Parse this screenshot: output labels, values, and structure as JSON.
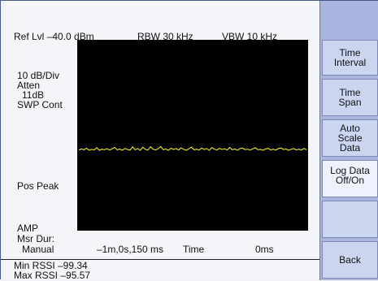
{
  "header": {
    "ref_level": "Ref Lvl –40.0 dBm",
    "rbw": "RBW 30 kHz",
    "vbw": "VBW 10 kHz"
  },
  "left_panel": {
    "scale": "10 dB/Div",
    "atten_label": "Atten",
    "atten_value": "11dB",
    "sweep_mode": "SWP Cont",
    "detector": "Pos Peak",
    "amp": "AMP",
    "msr_dur_label": "Msr Dur:",
    "msr_dur_value": "Manual"
  },
  "x_axis": {
    "start": "–1m,0s,150 ms",
    "label": "Time",
    "end": "0ms"
  },
  "readouts": {
    "min_rssi": "Min RSSI –99.34",
    "max_rssi": "Max RSSI –95.57"
  },
  "softkeys": [
    {
      "label": "",
      "style": "hdr"
    },
    {
      "label": "Time\nInterval",
      "style": "normal"
    },
    {
      "label": "Time\nSpan",
      "style": "normal"
    },
    {
      "label": "Auto\nScale\nData",
      "style": "normal"
    },
    {
      "label": "Log Data\nOff/On",
      "style": "selected"
    },
    {
      "label": "",
      "style": "normal"
    },
    {
      "label": "Back",
      "style": "normal"
    }
  ],
  "trace": {
    "color": "#ffff00",
    "level_dbm": -97.5,
    "points": [
      -97.8,
      -97.2,
      -97.6,
      -96.8,
      -97.9,
      -97.4,
      -97.7,
      -96.5,
      -97.9,
      -97.3,
      -97.6,
      -97.0,
      -97.8,
      -97.1,
      -96.4,
      -97.7,
      -97.2,
      -97.9,
      -96.9,
      -97.5,
      -97.8,
      -96.1,
      -97.6,
      -97.0,
      -97.9,
      -96.3,
      -97.4,
      -97.8,
      -96.0,
      -97.3,
      -97.7,
      -97.1,
      -95.9,
      -97.6,
      -97.2,
      -97.9,
      -96.8,
      -97.5,
      -97.0,
      -97.8,
      -96.6,
      -97.4,
      -97.9,
      -97.1,
      -96.2,
      -97.6,
      -97.3,
      -97.8,
      -96.7,
      -97.5,
      -97.0,
      -97.9,
      -96.5,
      -97.3,
      -97.7,
      -96.9,
      -97.5,
      -97.1,
      -97.8,
      -96.4,
      -97.6,
      -97.2,
      -97.9,
      -97.0,
      -96.8,
      -97.5,
      -97.3,
      -97.8,
      -97.1,
      -96.6,
      -97.6,
      -97.4,
      -97.9,
      -97.2,
      -96.9,
      -97.7,
      -97.3,
      -97.8,
      -97.0,
      -96.7,
      -97.5,
      -97.2,
      -97.9,
      -97.4,
      -97.0,
      -97.7,
      -97.3,
      -97.8,
      -96.9,
      -97.6
    ]
  }
}
